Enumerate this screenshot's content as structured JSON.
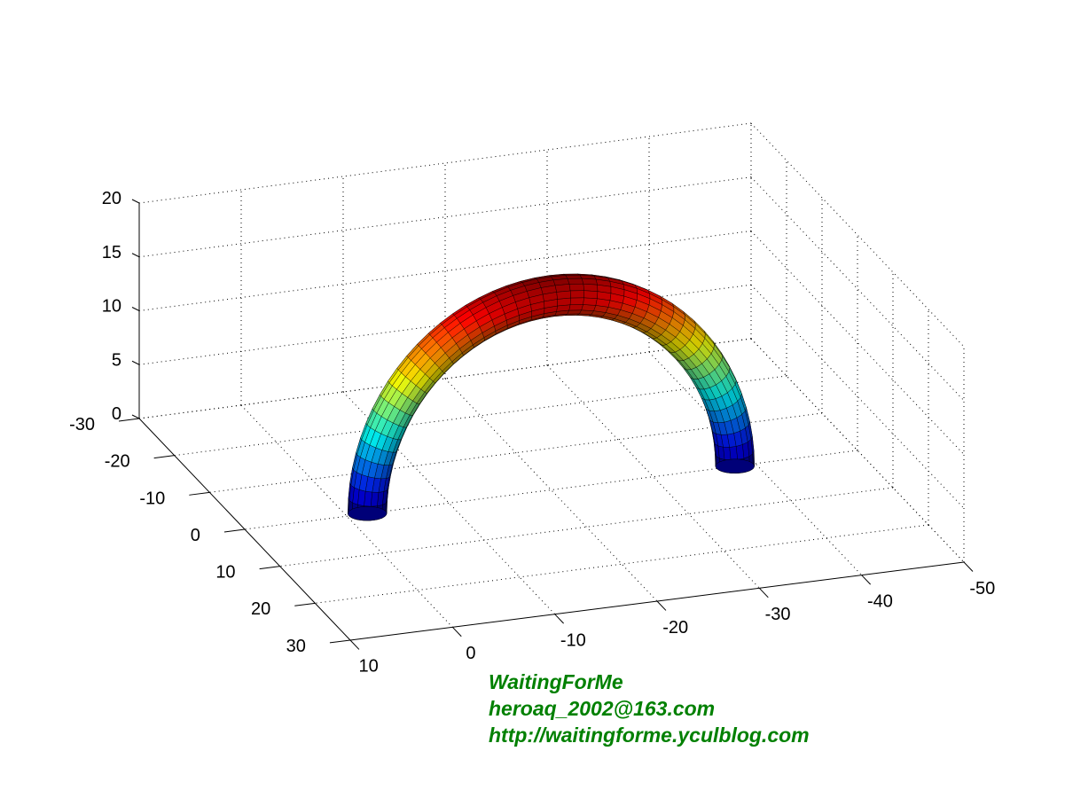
{
  "chart_data": {
    "type": "surface",
    "shape": "half-torus tube (arch)",
    "colormap": "jet",
    "grid": true,
    "xlim": [
      -50,
      10
    ],
    "ylim": [
      -30,
      30
    ],
    "zlim": [
      0,
      20
    ],
    "x_ticks": [
      "10",
      "0",
      "-10",
      "-20",
      "-30",
      "-40",
      "-50"
    ],
    "y_ticks": [
      "-30",
      "-20",
      "-10",
      "0",
      "10",
      "20",
      "30"
    ],
    "z_ticks": [
      "0",
      "5",
      "10",
      "15",
      "20"
    ],
    "arch": {
      "center": [
        -20,
        0,
        0
      ],
      "radius": 18,
      "tube_radius": 1.8
    }
  },
  "watermark": {
    "line1": "WaitingForMe",
    "line2": "heroaq_2002@163.com",
    "line3": "http://waitingforme.yculblog.com",
    "color": "#008000"
  }
}
